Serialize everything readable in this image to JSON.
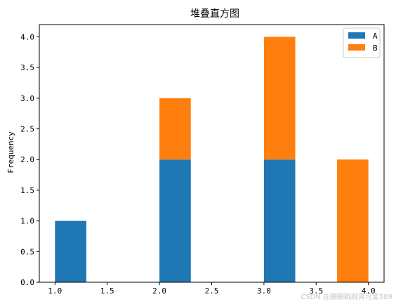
{
  "chart_data": {
    "type": "bar",
    "stacked": true,
    "title": "堆叠直方图",
    "xlabel": "",
    "ylabel": "Frequency",
    "xlim": [
      0.85,
      4.15
    ],
    "ylim": [
      0,
      4.2
    ],
    "bin_width": 0.3,
    "x": [
      1.0,
      2.0,
      3.0,
      3.7
    ],
    "xticks": [
      "1.0",
      "1.5",
      "2.0",
      "2.5",
      "3.0",
      "3.5",
      "4.0"
    ],
    "yticks": [
      "0.0",
      "0.5",
      "1.0",
      "1.5",
      "2.0",
      "2.5",
      "3.0",
      "3.5",
      "4.0"
    ],
    "series": [
      {
        "name": "A",
        "color": "#1f77b4",
        "values": [
          1,
          2,
          2,
          0
        ]
      },
      {
        "name": "B",
        "color": "#ff7f0e",
        "values": [
          0,
          1,
          2,
          2
        ]
      }
    ],
    "legend": "top-right",
    "grid": false
  },
  "watermark": "CSDN @蹦蹦跳跳真可爱589"
}
